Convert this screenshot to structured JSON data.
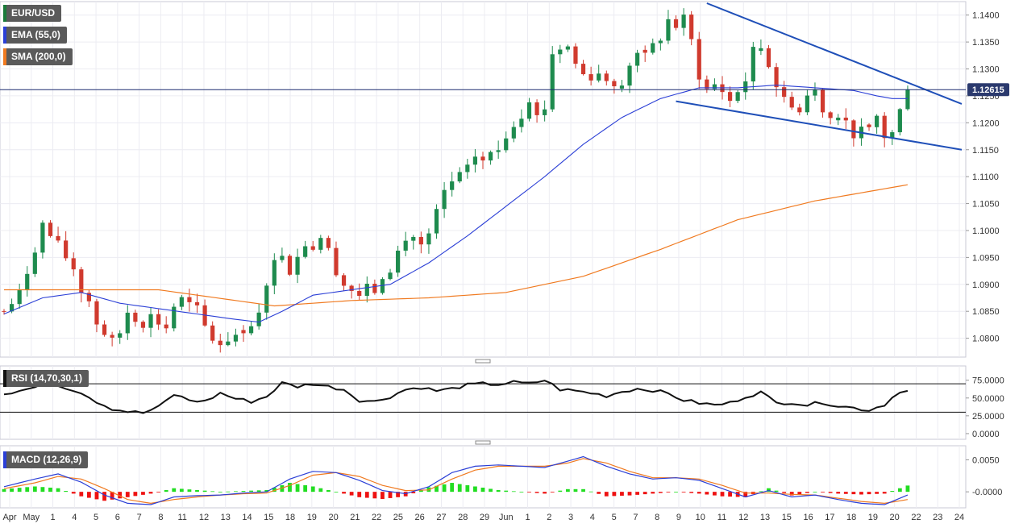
{
  "chart_data": [
    {
      "type": "candlestick",
      "series_label": "EUR/USD",
      "indicators": [
        {
          "label": "EMA (55,0)",
          "color": "#2b3fd6"
        },
        {
          "label": "SMA (200,0)",
          "color": "#f07a20"
        }
      ],
      "last_price": "1.12615",
      "ylim": [
        1.0765,
        1.1425
      ],
      "yticks": [
        "1.1400",
        "1.1350",
        "1.1300",
        "1.1250",
        "1.1200",
        "1.1150",
        "1.1100",
        "1.1050",
        "1.1000",
        "1.0950",
        "1.0900",
        "1.0850",
        "1.0800"
      ],
      "key_points": [
        [
          0,
          1.085
        ],
        [
          2,
          1.088
        ],
        [
          4,
          1.097
        ],
        [
          5,
          1.101
        ],
        [
          7,
          1.097
        ],
        [
          9,
          1.093
        ],
        [
          10,
          1.089
        ],
        [
          11,
          1.087
        ],
        [
          12,
          1.083
        ],
        [
          13,
          1.081
        ],
        [
          14,
          1.079
        ],
        [
          15,
          1.081
        ],
        [
          16,
          1.085
        ],
        [
          17,
          1.084
        ],
        [
          18,
          1.083
        ],
        [
          19,
          1.084
        ],
        [
          20,
          1.083
        ],
        [
          21,
          1.082
        ],
        [
          22,
          1.086
        ],
        [
          23,
          1.087
        ],
        [
          24,
          1.086
        ],
        [
          25,
          1.085
        ],
        [
          26,
          1.082
        ],
        [
          27,
          1.08
        ],
        [
          28,
          1.079
        ],
        [
          29,
          1.08
        ],
        [
          30,
          1.081
        ],
        [
          31,
          1.082
        ],
        [
          32,
          1.082
        ],
        [
          33,
          1.084
        ],
        [
          34,
          1.091
        ],
        [
          35,
          1.094
        ],
        [
          36,
          1.096
        ],
        [
          37,
          1.093
        ],
        [
          38,
          1.095
        ],
        [
          39,
          1.098
        ],
        [
          40,
          1.097
        ],
        [
          41,
          1.099
        ],
        [
          42,
          1.096
        ],
        [
          43,
          1.093
        ],
        [
          44,
          1.09
        ],
        [
          45,
          1.089
        ],
        [
          46,
          1.088
        ],
        [
          47,
          1.089
        ],
        [
          48,
          1.089
        ],
        [
          49,
          1.09
        ],
        [
          50,
          1.093
        ],
        [
          51,
          1.096
        ],
        [
          52,
          1.098
        ],
        [
          53,
          1.099
        ],
        [
          54,
          1.097
        ],
        [
          55,
          1.099
        ],
        [
          56,
          1.103
        ],
        [
          57,
          1.107
        ],
        [
          58,
          1.109
        ],
        [
          59,
          1.11
        ],
        [
          60,
          1.111
        ],
        [
          61,
          1.114
        ],
        [
          62,
          1.113
        ],
        [
          63,
          1.114
        ],
        [
          64,
          1.115
        ],
        [
          65,
          1.118
        ],
        [
          66,
          1.12
        ],
        [
          67,
          1.122
        ],
        [
          68,
          1.125
        ],
        [
          69,
          1.121
        ],
        [
          70,
          1.123
        ],
        [
          71,
          1.133
        ],
        [
          72,
          1.134
        ],
        [
          73,
          1.134
        ],
        [
          74,
          1.131
        ],
        [
          75,
          1.129
        ],
        [
          76,
          1.129
        ],
        [
          77,
          1.129
        ],
        [
          78,
          1.128
        ],
        [
          79,
          1.128
        ],
        [
          80,
          1.126
        ],
        [
          81,
          1.131
        ],
        [
          82,
          1.133
        ],
        [
          83,
          1.132
        ],
        [
          84,
          1.134
        ],
        [
          85,
          1.136
        ],
        [
          86,
          1.139
        ],
        [
          87,
          1.138
        ],
        [
          88,
          1.139
        ],
        [
          89,
          1.135
        ],
        [
          90,
          1.129
        ],
        [
          91,
          1.126
        ],
        [
          92,
          1.127
        ],
        [
          93,
          1.126
        ],
        [
          94,
          1.124
        ],
        [
          95,
          1.126
        ],
        [
          96,
          1.128
        ],
        [
          97,
          1.133
        ],
        [
          98,
          1.134
        ],
        [
          99,
          1.131
        ],
        [
          100,
          1.127
        ],
        [
          101,
          1.124
        ],
        [
          102,
          1.124
        ],
        [
          103,
          1.122
        ],
        [
          104,
          1.125
        ],
        [
          105,
          1.126
        ],
        [
          106,
          1.123
        ],
        [
          107,
          1.121
        ],
        [
          108,
          1.122
        ],
        [
          109,
          1.12
        ],
        [
          110,
          1.118
        ],
        [
          111,
          1.118
        ],
        [
          112,
          1.119
        ],
        [
          113,
          1.121
        ],
        [
          114,
          1.1175
        ],
        [
          115,
          1.118
        ],
        [
          116,
          1.122
        ],
        [
          117,
          1.1262
        ]
      ],
      "ema_points": [
        [
          0,
          1.0845
        ],
        [
          5,
          1.0875
        ],
        [
          10,
          1.0885
        ],
        [
          15,
          1.0865
        ],
        [
          20,
          1.0855
        ],
        [
          25,
          1.0845
        ],
        [
          30,
          1.0835
        ],
        [
          33,
          1.083
        ],
        [
          36,
          1.085
        ],
        [
          40,
          1.088
        ],
        [
          45,
          1.089
        ],
        [
          50,
          1.09
        ],
        [
          55,
          1.094
        ],
        [
          60,
          1.099
        ],
        [
          65,
          1.1045
        ],
        [
          70,
          1.11
        ],
        [
          75,
          1.116
        ],
        [
          80,
          1.121
        ],
        [
          85,
          1.1245
        ],
        [
          90,
          1.1265
        ],
        [
          95,
          1.1265
        ],
        [
          100,
          1.127
        ],
        [
          105,
          1.1265
        ],
        [
          110,
          1.126
        ],
        [
          113,
          1.125
        ],
        [
          115,
          1.1245
        ],
        [
          117,
          1.1245
        ]
      ],
      "sma_points": [
        [
          0,
          1.089
        ],
        [
          10,
          1.089
        ],
        [
          20,
          1.089
        ],
        [
          30,
          1.087
        ],
        [
          35,
          1.086
        ],
        [
          45,
          1.087
        ],
        [
          55,
          1.0875
        ],
        [
          65,
          1.0885
        ],
        [
          75,
          1.0915
        ],
        [
          85,
          1.0965
        ],
        [
          95,
          1.102
        ],
        [
          105,
          1.1055
        ],
        [
          117,
          1.1085
        ]
      ],
      "trendline_upper": [
        [
          91,
          1.1422
        ],
        [
          124,
          1.1235
        ]
      ],
      "trendline_lower": [
        [
          87,
          1.124
        ],
        [
          124,
          1.115
        ]
      ],
      "x_labels": [
        "Apr",
        "May",
        "1",
        "4",
        "5",
        "6",
        "7",
        "8",
        "11",
        "12",
        "13",
        "14",
        "15",
        "18",
        "19",
        "20",
        "21",
        "22",
        "25",
        "26",
        "27",
        "28",
        "29",
        "Jun",
        "1",
        "2",
        "3",
        "4",
        "5",
        "7",
        "8",
        "9",
        "10",
        "11",
        "12",
        "13",
        "15",
        "16",
        "17",
        "18",
        "19",
        "20",
        "22",
        "23",
        "24"
      ]
    },
    {
      "type": "line",
      "series_label": "RSI (14,70,30,1)",
      "ylim": [
        0,
        100
      ],
      "yticks": [
        "75.0000",
        "50.0000",
        "25.0000",
        "0.0000"
      ],
      "levels": [
        70,
        30
      ],
      "key_points": [
        [
          0,
          55
        ],
        [
          4,
          65
        ],
        [
          6,
          70
        ],
        [
          8,
          65
        ],
        [
          10,
          58
        ],
        [
          12,
          45
        ],
        [
          14,
          35
        ],
        [
          16,
          31
        ],
        [
          18,
          29
        ],
        [
          20,
          37
        ],
        [
          22,
          55
        ],
        [
          24,
          47
        ],
        [
          26,
          45
        ],
        [
          28,
          57
        ],
        [
          30,
          49
        ],
        [
          32,
          45
        ],
        [
          34,
          52
        ],
        [
          36,
          71
        ],
        [
          38,
          66
        ],
        [
          40,
          70
        ],
        [
          42,
          66
        ],
        [
          44,
          62
        ],
        [
          46,
          47
        ],
        [
          48,
          45
        ],
        [
          50,
          52
        ],
        [
          52,
          62
        ],
        [
          54,
          65
        ],
        [
          56,
          60
        ],
        [
          58,
          63
        ],
        [
          60,
          68
        ],
        [
          62,
          70
        ],
        [
          64,
          69
        ],
        [
          66,
          72
        ],
        [
          68,
          70
        ],
        [
          70,
          75
        ],
        [
          72,
          62
        ],
        [
          74,
          60
        ],
        [
          76,
          57
        ],
        [
          78,
          53
        ],
        [
          80,
          59
        ],
        [
          82,
          63
        ],
        [
          84,
          61
        ],
        [
          86,
          56
        ],
        [
          88,
          47
        ],
        [
          90,
          43
        ],
        [
          92,
          40
        ],
        [
          94,
          43
        ],
        [
          96,
          52
        ],
        [
          98,
          58
        ],
        [
          100,
          43
        ],
        [
          102,
          44
        ],
        [
          104,
          40
        ],
        [
          106,
          44
        ],
        [
          108,
          39
        ],
        [
          110,
          36
        ],
        [
          112,
          33
        ],
        [
          114,
          41
        ],
        [
          116,
          60
        ],
        [
          117,
          60
        ]
      ]
    },
    {
      "type": "line",
      "series_label": "MACD (12,26,9)",
      "ylim": [
        -0.0025,
        0.0072
      ],
      "yticks": [
        "0.0050",
        "-0.0000"
      ],
      "macd_points": [
        [
          0,
          0.0008
        ],
        [
          4,
          0.002
        ],
        [
          7,
          0.0028
        ],
        [
          10,
          0.0015
        ],
        [
          13,
          -0.0005
        ],
        [
          16,
          -0.0018
        ],
        [
          19,
          -0.002
        ],
        [
          22,
          -0.0008
        ],
        [
          25,
          -0.0006
        ],
        [
          28,
          -0.0005
        ],
        [
          31,
          -0.0002
        ],
        [
          34,
          0.0
        ],
        [
          37,
          0.002
        ],
        [
          40,
          0.0032
        ],
        [
          43,
          0.003
        ],
        [
          46,
          0.0018
        ],
        [
          49,
          0.0002
        ],
        [
          52,
          -0.0003
        ],
        [
          55,
          0.0008
        ],
        [
          58,
          0.003
        ],
        [
          61,
          0.004
        ],
        [
          64,
          0.0042
        ],
        [
          67,
          0.004
        ],
        [
          70,
          0.0038
        ],
        [
          73,
          0.0048
        ],
        [
          75,
          0.0055
        ],
        [
          78,
          0.004
        ],
        [
          81,
          0.0028
        ],
        [
          84,
          0.002
        ],
        [
          87,
          0.0022
        ],
        [
          90,
          0.0018
        ],
        [
          93,
          0.0005
        ],
        [
          96,
          -0.0008
        ],
        [
          99,
          0.0002
        ],
        [
          102,
          -0.0008
        ],
        [
          105,
          -0.0005
        ],
        [
          108,
          -0.0012
        ],
        [
          111,
          -0.0018
        ],
        [
          114,
          -0.002
        ],
        [
          117,
          -0.0005
        ]
      ],
      "signal_points": [
        [
          0,
          0.0005
        ],
        [
          4,
          0.0014
        ],
        [
          7,
          0.0024
        ],
        [
          10,
          0.002
        ],
        [
          13,
          0.0005
        ],
        [
          16,
          -0.0012
        ],
        [
          19,
          -0.0018
        ],
        [
          22,
          -0.0012
        ],
        [
          25,
          -0.0008
        ],
        [
          28,
          -0.0005
        ],
        [
          31,
          -0.0003
        ],
        [
          34,
          -0.0002
        ],
        [
          37,
          0.001
        ],
        [
          40,
          0.0026
        ],
        [
          43,
          0.003
        ],
        [
          46,
          0.0024
        ],
        [
          49,
          0.001
        ],
        [
          52,
          0.0002
        ],
        [
          55,
          0.0003
        ],
        [
          58,
          0.002
        ],
        [
          61,
          0.0034
        ],
        [
          64,
          0.004
        ],
        [
          67,
          0.004
        ],
        [
          70,
          0.004
        ],
        [
          73,
          0.0045
        ],
        [
          75,
          0.0052
        ],
        [
          78,
          0.0045
        ],
        [
          81,
          0.0032
        ],
        [
          84,
          0.0022
        ],
        [
          87,
          0.0022
        ],
        [
          90,
          0.002
        ],
        [
          93,
          0.001
        ],
        [
          96,
          -0.0002
        ],
        [
          99,
          -0.0002
        ],
        [
          102,
          -0.0004
        ],
        [
          105,
          -0.0005
        ],
        [
          108,
          -0.001
        ],
        [
          111,
          -0.0015
        ],
        [
          114,
          -0.0018
        ],
        [
          117,
          -0.0012
        ]
      ],
      "colors": {
        "macd": "#2b3fd6",
        "signal": "#f07a20",
        "hist_pos": "#22dd22",
        "hist_neg": "#ee1111"
      }
    }
  ]
}
